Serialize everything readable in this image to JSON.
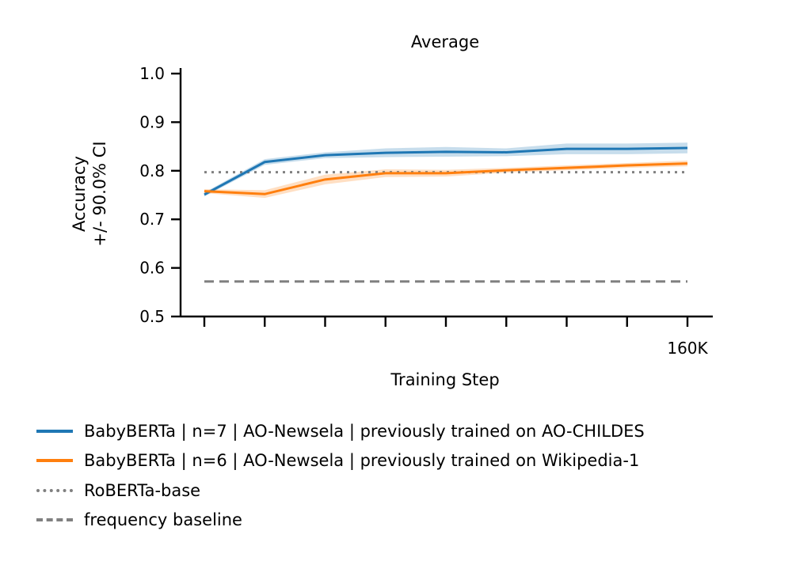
{
  "chart_data": {
    "type": "line",
    "title": "Average",
    "xlabel": "Training Step",
    "ylabel_line1": "Accuracy",
    "ylabel_line2": "+/- 90.0% CI",
    "ylim": [
      0.5,
      1.0
    ],
    "yticks": [
      "0.5",
      "0.6",
      "0.7",
      "0.8",
      "0.9",
      "1.0"
    ],
    "x_tick_count": 9,
    "x_tick_labels": [
      "",
      "",
      "",
      "",
      "",
      "",
      "",
      "",
      "160K"
    ],
    "series": [
      {
        "name": "BabyBERTa | n=7 | AO-Newsela | previously trained on AO-CHILDES",
        "color": "#1f77b4",
        "values": [
          0.751,
          0.818,
          0.832,
          0.837,
          0.839,
          0.838,
          0.845,
          0.845,
          0.847
        ],
        "ci_halfwidth": [
          0.004,
          0.006,
          0.006,
          0.009,
          0.01,
          0.008,
          0.011,
          0.011,
          0.011
        ]
      },
      {
        "name": "BabyBERTa | n=6 | AO-Newsela | previously trained on Wikipedia-1",
        "color": "#ff7f0e",
        "values": [
          0.758,
          0.752,
          0.782,
          0.795,
          0.795,
          0.801,
          0.806,
          0.811,
          0.815
        ],
        "ci_halfwidth": [
          0.004,
          0.008,
          0.01,
          0.008,
          0.007,
          0.005,
          0.005,
          0.005,
          0.006
        ]
      }
    ],
    "reference_lines": [
      {
        "name": "RoBERTa-base",
        "value": 0.797,
        "color": "#808080",
        "style": "dotted"
      },
      {
        "name": "frequency baseline",
        "value": 0.572,
        "color": "#808080",
        "style": "dashed"
      }
    ]
  },
  "legend": {
    "items": [
      {
        "label": "BabyBERTa | n=7 | AO-Newsela | previously trained on AO-CHILDES",
        "color": "#1f77b4",
        "style": "solid"
      },
      {
        "label": "BabyBERTa | n=6 | AO-Newsela | previously trained on Wikipedia-1",
        "color": "#ff7f0e",
        "style": "solid"
      },
      {
        "label": "RoBERTa-base",
        "color": "#808080",
        "style": "dotted"
      },
      {
        "label": "frequency baseline",
        "color": "#808080",
        "style": "dashed"
      }
    ]
  }
}
